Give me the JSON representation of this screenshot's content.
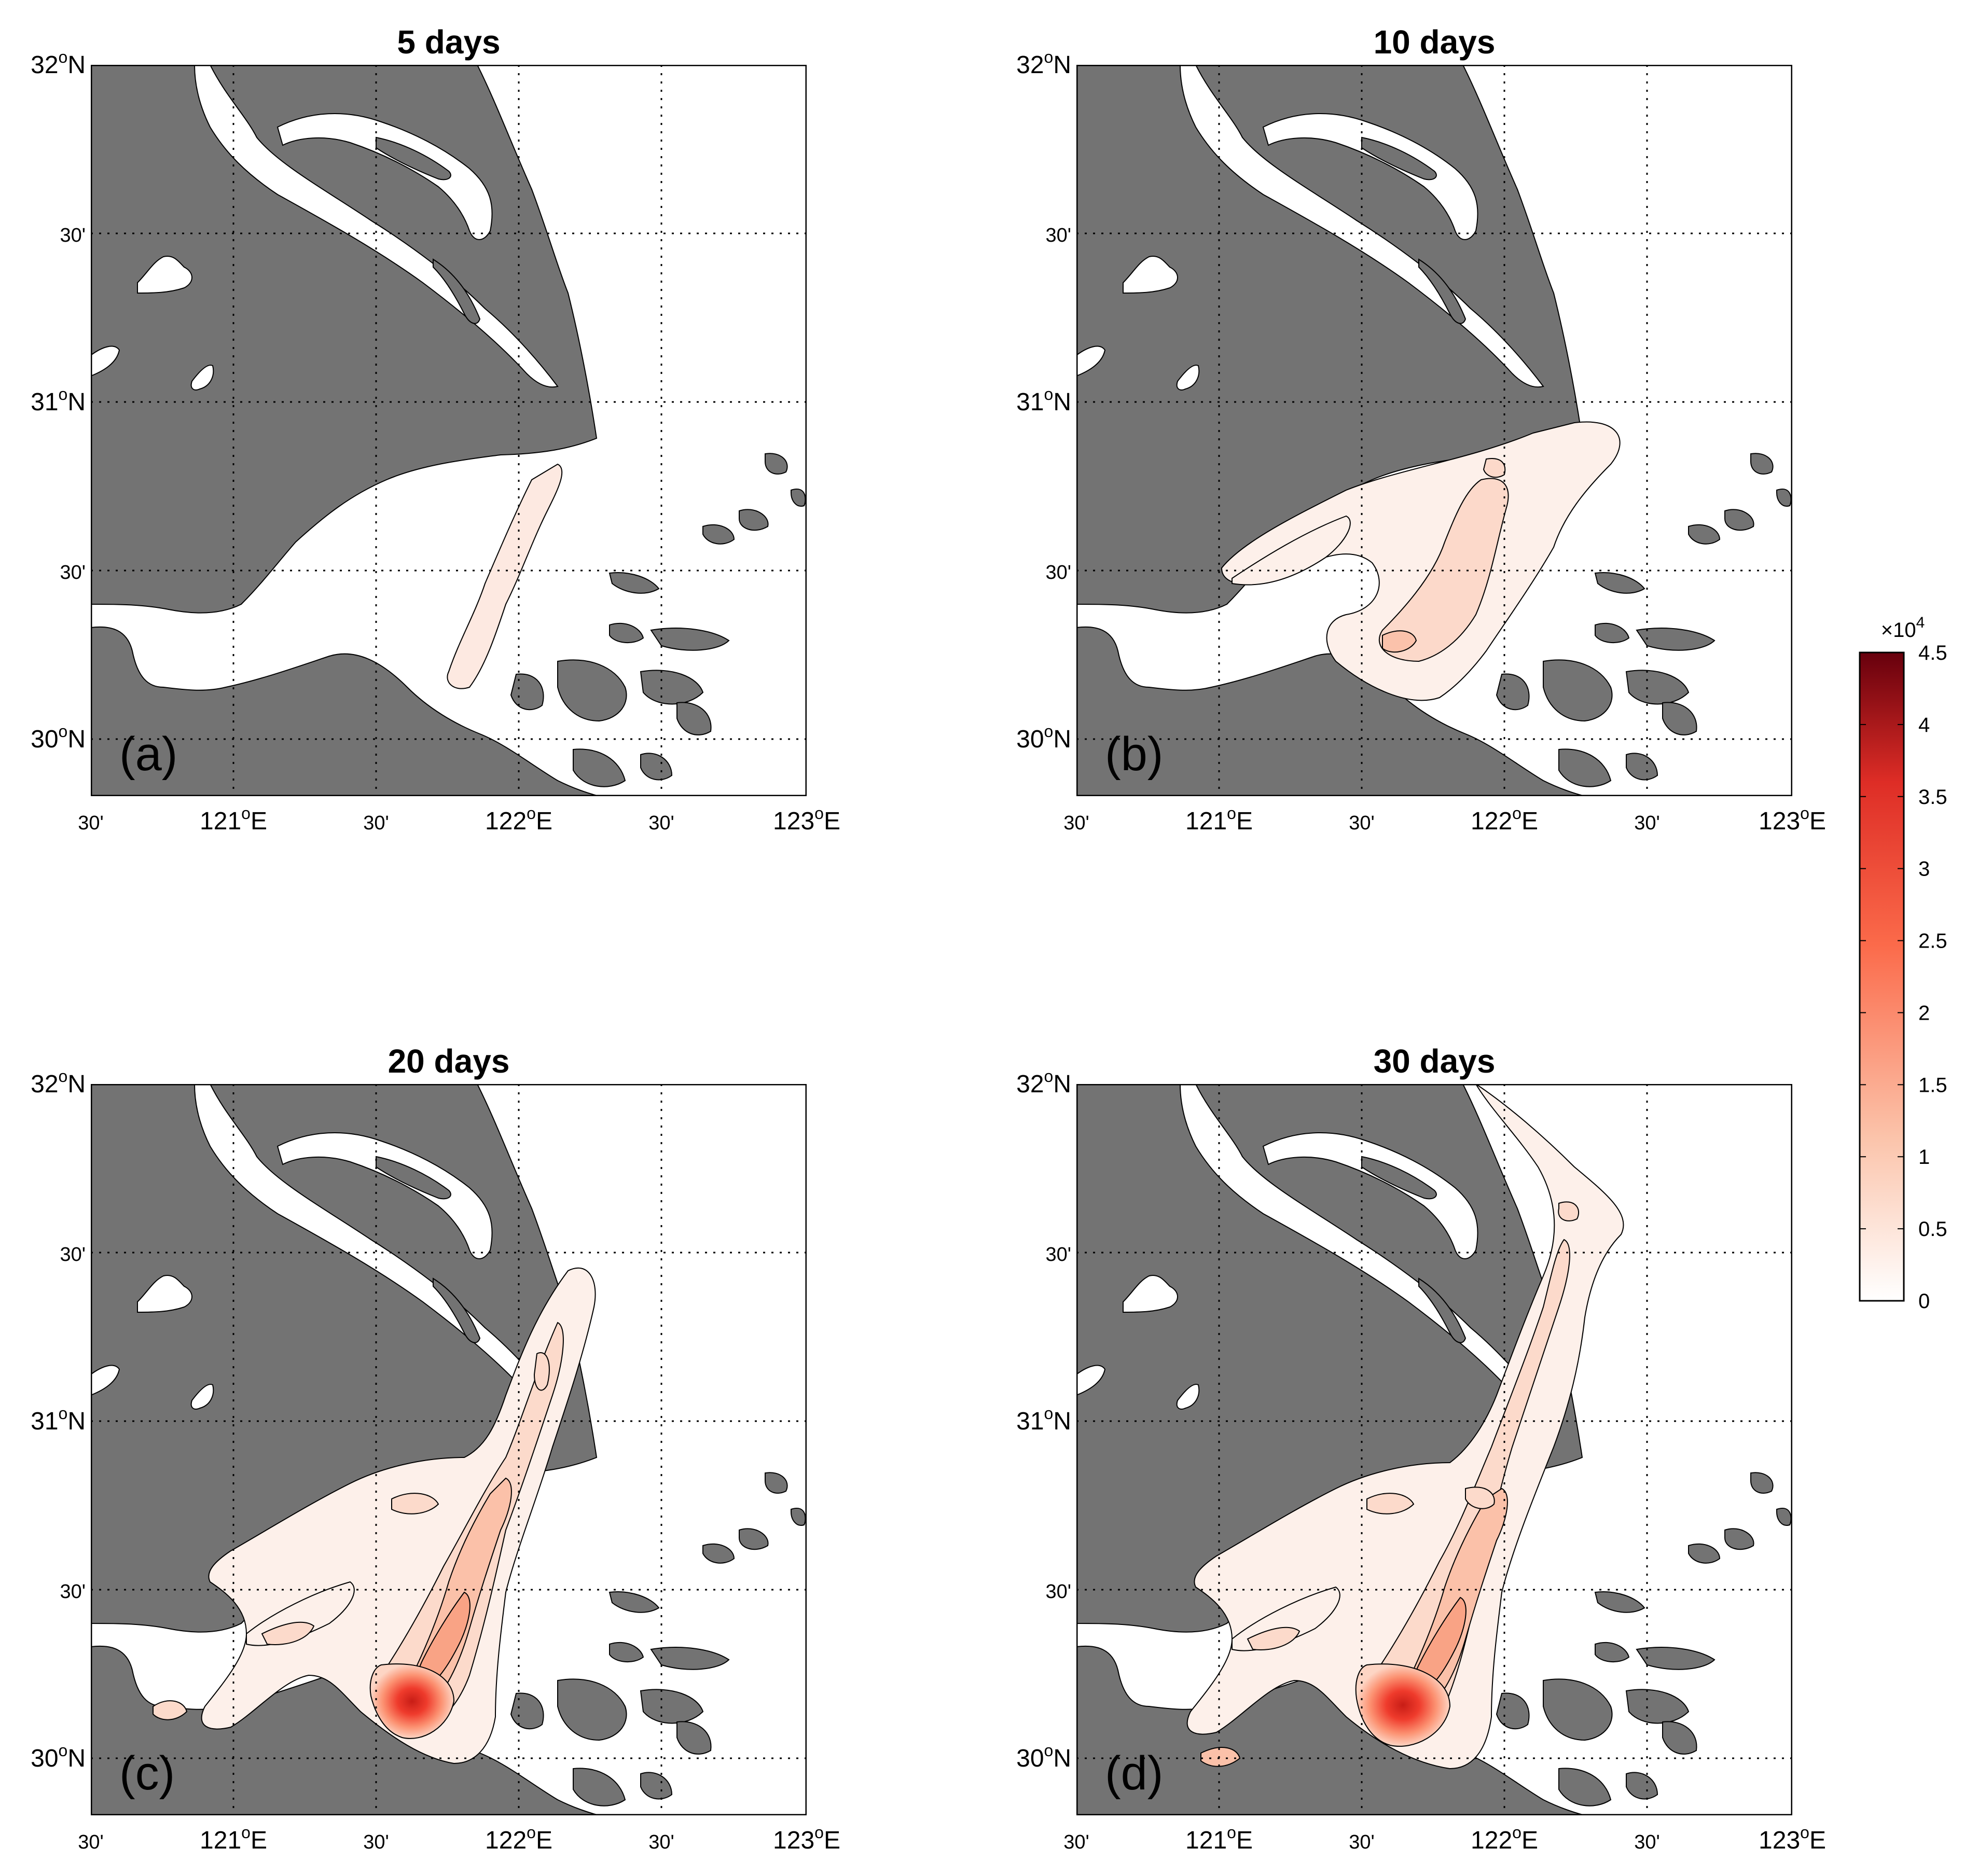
{
  "panels": [
    {
      "id": "a",
      "title": "5 days",
      "label": "(a)",
      "days": 5
    },
    {
      "id": "b",
      "title": "10 days",
      "label": "(b)",
      "days": 10
    },
    {
      "id": "c",
      "title": "20 days",
      "label": "(c)",
      "days": 20
    },
    {
      "id": "d",
      "title": "30 days",
      "label": "(d)",
      "days": 30
    }
  ],
  "axes": {
    "lat_labels": [
      {
        "major": "32",
        "suffix": "N"
      },
      {
        "major": "",
        "minor": "30'"
      },
      {
        "major": "31",
        "suffix": "N"
      },
      {
        "major": "",
        "minor": "30'"
      },
      {
        "major": "30",
        "suffix": "N"
      }
    ],
    "lon_labels": [
      {
        "major": "",
        "minor": "30'"
      },
      {
        "major": "121",
        "suffix": "E"
      },
      {
        "major": "",
        "minor": "30'"
      },
      {
        "major": "122",
        "suffix": "E"
      },
      {
        "major": "",
        "minor": "30'"
      },
      {
        "major": "123",
        "suffix": "E"
      }
    ],
    "degree_symbol": "o",
    "lat_range": [
      29.82,
      32.0
    ],
    "lon_range": [
      120.5,
      123.0
    ],
    "grid": "dotted"
  },
  "colorbar": {
    "multiplier_base": "×10",
    "multiplier_exp": "4",
    "ticks": [
      "0",
      "0.5",
      "1",
      "1.5",
      "2",
      "2.5",
      "3",
      "3.5",
      "4",
      "4.5"
    ],
    "range": [
      0,
      45000
    ],
    "colormap": "white-to-dark-red",
    "color_low": "#ffffff",
    "color_mid": "#f03b20",
    "color_high": "#67000d"
  },
  "colors": {
    "land": "#737373",
    "water": "#ffffff",
    "contour_line": "#000000"
  }
}
